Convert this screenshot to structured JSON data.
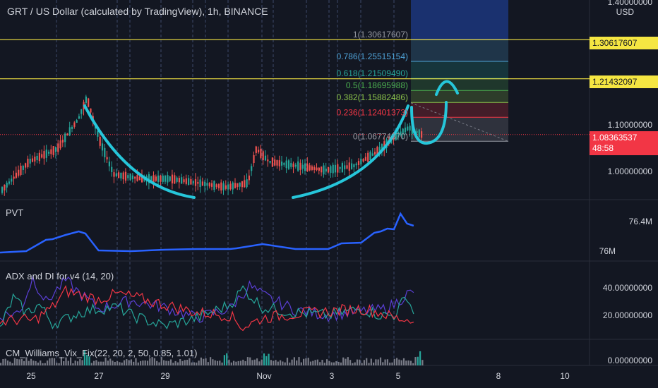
{
  "header": {
    "title": "GRT / US Dollar (calculated by TradingView), 1h, BINANCE"
  },
  "chart_data": [
    {
      "type": "candlestick",
      "title": "GRT / US Dollar (calculated by TradingView), 1h, BINANCE",
      "currency": "USD",
      "y_axis_labels": [
        "1.40000000",
        "1.10000000",
        "1.00000000"
      ],
      "ylim": [
        0.93,
        1.4
      ],
      "horizontal_levels": [
        {
          "value": 1.30617607,
          "label": "1.30617607",
          "color": "#f5e642"
        },
        {
          "value": 1.21432097,
          "label": "1.21432097",
          "color": "#f5e642"
        }
      ],
      "last_price": {
        "value": 1.08363537,
        "label": "1.08363537",
        "countdown": "48:58",
        "color": "#f23645"
      },
      "fibonacci": [
        {
          "level": "1",
          "value": 1.30617607,
          "label": "1(1.30617607)",
          "color": "#9598a1"
        },
        {
          "level": "0.786",
          "value": 1.25515154,
          "label": "0.786(1.25515154)",
          "color": "#4fa3d8"
        },
        {
          "level": "0.618",
          "value": 1.2150949,
          "label": "0.618(1.21509490)",
          "color": "#26a69a"
        },
        {
          "level": "0.5",
          "value": 1.18695988,
          "label": "0.5(1.18695988)",
          "color": "#4caf50"
        },
        {
          "level": "0.382",
          "value": 1.15882486,
          "label": "0.382(1.15882486)",
          "color": "#8bc34a"
        },
        {
          "level": "0.236",
          "value": 1.12401373,
          "label": "0.236(1.12401373)",
          "color": "#f23645"
        },
        {
          "level": "0",
          "value": 1.0677437,
          "label": "0(1.06774370)",
          "color": "#9598a1"
        }
      ],
      "x_labels": [
        "25",
        "27",
        "29",
        "Nov",
        "3",
        "5",
        "8",
        "10"
      ]
    },
    {
      "type": "line",
      "title": "PVT",
      "y_axis_labels": [
        "76.4M",
        "76M"
      ],
      "ylim": [
        75.9,
        76.6
      ],
      "series": [
        {
          "color": "#2962ff",
          "x": [
            0,
            4,
            7,
            8,
            10,
            12,
            13,
            15,
            20,
            25,
            30,
            35,
            36,
            40,
            45,
            50,
            52,
            55,
            57,
            58,
            59,
            60,
            61,
            62,
            63
          ],
          "values": [
            75.95,
            75.97,
            76.13,
            76.14,
            76.2,
            76.25,
            76.22,
            75.98,
            75.97,
            75.99,
            76.0,
            76.0,
            76.01,
            76.07,
            76.0,
            76.0,
            76.08,
            76.09,
            76.23,
            76.25,
            76.29,
            76.28,
            76.5,
            76.36,
            76.33
          ]
        }
      ]
    },
    {
      "type": "line",
      "title": "ADX and DI for v4 (14, 20)",
      "y_axis_labels": [
        "40.00000000",
        "20.00000000"
      ],
      "ylim": [
        5,
        55
      ],
      "series": [
        {
          "color": "#5b3fd6",
          "x": [
            0,
            3,
            5,
            7,
            10,
            12,
            15,
            20,
            25,
            30,
            35,
            38,
            40,
            45,
            50,
            55,
            58,
            60,
            62,
            63
          ],
          "values": [
            20,
            22,
            48,
            30,
            46,
            37,
            25,
            31,
            26,
            18,
            25,
            42,
            35,
            24,
            20,
            23,
            24,
            28,
            36,
            37
          ]
        },
        {
          "color": "#26a69a",
          "x": [
            0,
            2,
            4,
            6,
            8,
            10,
            12,
            15,
            18,
            20,
            25,
            30,
            35,
            37,
            40,
            45,
            50,
            55,
            58,
            60,
            62,
            63
          ],
          "values": [
            10,
            33,
            22,
            28,
            14,
            17,
            22,
            25,
            26,
            20,
            12,
            18,
            28,
            40,
            26,
            22,
            20,
            25,
            20,
            20,
            35,
            21
          ]
        },
        {
          "color": "#f23645",
          "x": [
            0,
            3,
            5,
            8,
            10,
            15,
            18,
            20,
            25,
            30,
            35,
            37,
            40,
            45,
            50,
            55,
            58,
            60,
            62,
            63
          ],
          "values": [
            15,
            17,
            16,
            26,
            38,
            32,
            36,
            34,
            28,
            22,
            20,
            11,
            18,
            21,
            23,
            25,
            22,
            18,
            17,
            15
          ]
        }
      ]
    },
    {
      "type": "bar",
      "title": "CM_Williams_Vix_Fix(22, 20, 2, 50, 0.85, 1.01)",
      "y_axis_labels": [
        "0.00000000"
      ],
      "ylim": [
        0,
        1
      ],
      "highlight_color": "#26a69a",
      "base_color": "#787b86"
    }
  ]
}
